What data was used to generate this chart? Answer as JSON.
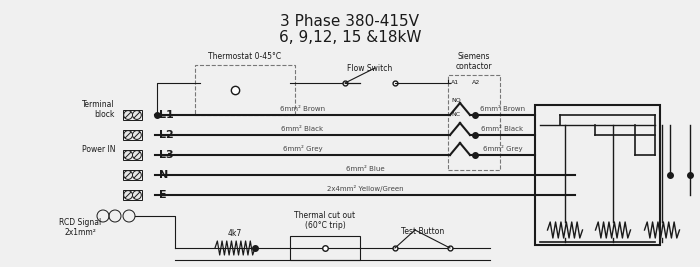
{
  "title_line1": "3 Phase 380-415V",
  "title_line2": "6, 9,12, 15 &18kW",
  "title_fontsize": 11,
  "bg_color": "#f0f0f0",
  "line_color": "#1a1a1a",
  "label_fontsize": 6,
  "small_fontsize": 5.5,
  "terminal_labels": [
    "L1",
    "L2",
    "L3",
    "N",
    "E"
  ],
  "wire_labels_left": [
    "6mm² Brown",
    "6mm² Black",
    "6mm² Grey",
    "6mm² Blue",
    "2x4mm² Yellow/Green"
  ],
  "wire_labels_right": [
    "6mm² Brown",
    "6mm² Black",
    "6mm² Grey"
  ],
  "thermostat_label": "Thermostat 0-45°C",
  "flow_switch_label": "Flow Switch",
  "siemens_label": "Siemens\ncontactor",
  "power_in_label": "Power IN",
  "terminal_block_label": "Terminal\nblock",
  "rcd_label": "RCD Signal\n2x1mm²",
  "thermal_label": "Thermal cut out\n(60°C trip)",
  "test_button_label": "Test Button",
  "resistor_label": "4k7"
}
